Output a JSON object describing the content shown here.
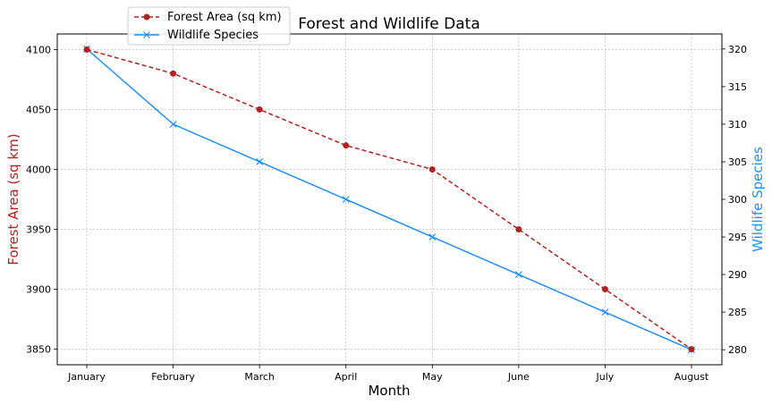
{
  "chart_data": {
    "type": "line",
    "title": "Forest and Wildlife Data",
    "xlabel": "Month",
    "ylabel_left": "Forest Area (sq km)",
    "ylabel_right": "Wildlife Species",
    "categories": [
      "January",
      "February",
      "March",
      "April",
      "May",
      "June",
      "July",
      "August"
    ],
    "ylim_left": [
      3837,
      4113
    ],
    "ylim_right": [
      278,
      322
    ],
    "yticks_left": [
      "3850",
      "3900",
      "3950",
      "4000",
      "4050",
      "4100"
    ],
    "yticks_right": [
      "280",
      "285",
      "290",
      "295",
      "300",
      "305",
      "310",
      "315",
      "320"
    ],
    "grid": true,
    "legend_position": "top-left",
    "series": [
      {
        "name": "Forest Area (sq km)",
        "axis": "left",
        "values": [
          4100,
          4080,
          4050,
          4020,
          4000,
          3950,
          3900,
          3850
        ],
        "color": "#b22222",
        "line_style": "dashed",
        "marker": "circle"
      },
      {
        "name": "Wildlife Species",
        "axis": "right",
        "values": [
          320,
          310,
          305,
          300,
          295,
          290,
          285,
          280
        ],
        "color": "#1e90ff",
        "line_style": "solid",
        "marker": "x"
      }
    ]
  }
}
